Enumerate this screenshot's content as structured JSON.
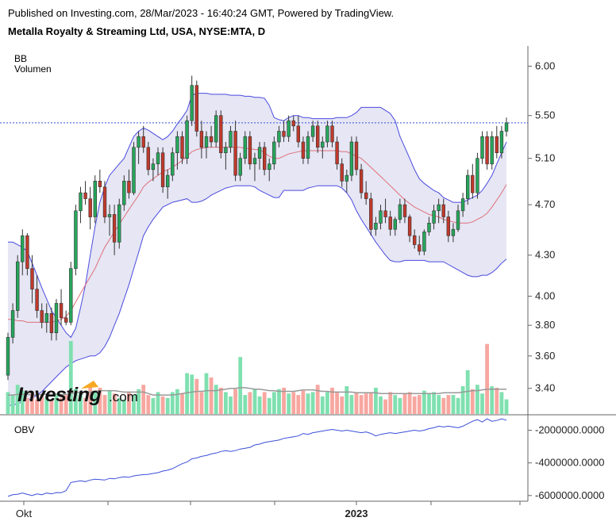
{
  "header": {
    "publisher": "Published on Investing.com, 28/Mar/2023 - 16:40:24 GMT, Powered by TradingView.",
    "symbol": "Metalla Royalty & Streaming Ltd, USA, NYSE:MTA, D"
  },
  "logo": {
    "text": "Investing",
    "suffix": ".com"
  },
  "colors": {
    "up": "#26a65b",
    "down": "#c0392b",
    "vol_up": "#7fe0b0",
    "vol_down": "#f7a7a0",
    "bb_band": "#4a4ae0",
    "bb_fill": "#e6e6f4",
    "bb_mid": "#e0707a",
    "obv": "#3b4fd8",
    "price_line": "#3b4fd8",
    "vol_ma": "#999999"
  },
  "chart_data": [
    {
      "type": "candlestick",
      "title": "Metalla Royalty & Streaming Ltd, USA, NYSE:MTA, D",
      "legend": [
        "BB",
        "Volumen"
      ],
      "y_ticks": [
        "6.00",
        "5.50",
        "5.10",
        "4.70",
        "4.30",
        "4.00",
        "3.80",
        "3.60",
        "3.40"
      ],
      "ylim": [
        3.25,
        6.2
      ],
      "y_scale": "log",
      "current_price": 5.43,
      "x_labels": [
        "Okt",
        "",
        "",
        "",
        "2023",
        "",
        "",
        ""
      ],
      "candles": [
        [
          3.48,
          3.75,
          3.45,
          3.72
        ],
        [
          3.72,
          3.95,
          3.68,
          3.9
        ],
        [
          3.9,
          4.3,
          3.85,
          4.25
        ],
        [
          4.25,
          4.5,
          4.15,
          4.45
        ],
        [
          4.45,
          4.47,
          4.15,
          4.2
        ],
        [
          4.2,
          4.3,
          3.95,
          4.05
        ],
        [
          4.05,
          4.15,
          3.85,
          3.9
        ],
        [
          3.9,
          3.95,
          3.78,
          3.82
        ],
        [
          3.82,
          3.95,
          3.75,
          3.88
        ],
        [
          3.88,
          3.92,
          3.7,
          3.75
        ],
        [
          3.75,
          3.98,
          3.7,
          3.95
        ],
        [
          3.95,
          4.05,
          3.8,
          3.85
        ],
        [
          3.85,
          3.9,
          3.8,
          3.82
        ],
        [
          3.82,
          4.25,
          3.8,
          4.2
        ],
        [
          4.2,
          4.7,
          4.15,
          4.65
        ],
        [
          4.65,
          4.85,
          4.55,
          4.8
        ],
        [
          4.8,
          4.9,
          4.7,
          4.75
        ],
        [
          4.75,
          4.85,
          4.5,
          4.6
        ],
        [
          4.6,
          4.95,
          4.55,
          4.9
        ],
        [
          4.9,
          5.0,
          4.8,
          4.85
        ],
        [
          4.85,
          4.9,
          4.55,
          4.6
        ],
        [
          4.6,
          4.7,
          4.45,
          4.62
        ],
        [
          4.62,
          4.7,
          4.3,
          4.4
        ],
        [
          4.4,
          4.75,
          4.35,
          4.7
        ],
        [
          4.7,
          4.95,
          4.65,
          4.9
        ],
        [
          4.9,
          5.0,
          4.75,
          4.8
        ],
        [
          4.8,
          5.25,
          4.78,
          5.2
        ],
        [
          5.2,
          5.35,
          5.05,
          5.3
        ],
        [
          5.3,
          5.4,
          5.15,
          5.2
        ],
        [
          5.2,
          5.25,
          4.95,
          5.0
        ],
        [
          5.0,
          5.1,
          4.9,
          5.05
        ],
        [
          5.05,
          5.2,
          4.95,
          5.15
        ],
        [
          5.15,
          5.2,
          4.8,
          4.85
        ],
        [
          4.85,
          5.0,
          4.75,
          4.95
        ],
        [
          4.95,
          5.2,
          4.9,
          5.15
        ],
        [
          5.15,
          5.35,
          5.0,
          5.3
        ],
        [
          5.3,
          5.35,
          5.05,
          5.1
        ],
        [
          5.1,
          5.5,
          5.05,
          5.45
        ],
        [
          5.45,
          5.9,
          5.4,
          5.8
        ],
        [
          5.8,
          5.85,
          5.3,
          5.35
        ],
        [
          5.35,
          5.45,
          5.1,
          5.2
        ],
        [
          5.2,
          5.35,
          5.1,
          5.3
        ],
        [
          5.3,
          5.4,
          5.2,
          5.25
        ],
        [
          5.25,
          5.55,
          5.2,
          5.5
        ],
        [
          5.5,
          5.55,
          5.1,
          5.15
        ],
        [
          5.15,
          5.25,
          5.0,
          5.2
        ],
        [
          5.2,
          5.4,
          5.15,
          5.35
        ],
        [
          5.35,
          5.45,
          4.9,
          4.95
        ],
        [
          4.95,
          5.15,
          4.9,
          5.1
        ],
        [
          5.1,
          5.35,
          5.05,
          5.3
        ],
        [
          5.3,
          5.35,
          5.0,
          5.05
        ],
        [
          5.05,
          5.15,
          4.9,
          5.1
        ],
        [
          5.1,
          5.25,
          5.0,
          5.2
        ],
        [
          5.2,
          5.25,
          4.95,
          5.0
        ],
        [
          5.0,
          5.1,
          4.9,
          5.05
        ],
        [
          5.05,
          5.3,
          5.0,
          5.25
        ],
        [
          5.25,
          5.4,
          5.2,
          5.35
        ],
        [
          5.35,
          5.45,
          5.25,
          5.3
        ],
        [
          5.3,
          5.5,
          5.25,
          5.45
        ],
        [
          5.45,
          5.5,
          5.35,
          5.4
        ],
        [
          5.4,
          5.5,
          5.2,
          5.25
        ],
        [
          5.25,
          5.3,
          5.05,
          5.1
        ],
        [
          5.1,
          5.35,
          5.05,
          5.3
        ],
        [
          5.3,
          5.45,
          5.25,
          5.4
        ],
        [
          5.4,
          5.45,
          5.15,
          5.2
        ],
        [
          5.2,
          5.3,
          5.1,
          5.25
        ],
        [
          5.25,
          5.45,
          5.2,
          5.4
        ],
        [
          5.4,
          5.45,
          5.2,
          5.25
        ],
        [
          5.25,
          5.3,
          5.0,
          5.05
        ],
        [
          5.05,
          5.1,
          4.85,
          4.9
        ],
        [
          4.9,
          5.0,
          4.8,
          4.95
        ],
        [
          4.95,
          5.3,
          4.9,
          5.25
        ],
        [
          5.25,
          5.3,
          4.95,
          5.0
        ],
        [
          5.0,
          5.05,
          4.75,
          4.8
        ],
        [
          4.8,
          4.9,
          4.7,
          4.75
        ],
        [
          4.75,
          4.8,
          4.45,
          4.5
        ],
        [
          4.5,
          4.6,
          4.45,
          4.55
        ],
        [
          4.55,
          4.7,
          4.5,
          4.65
        ],
        [
          4.65,
          4.75,
          4.55,
          4.6
        ],
        [
          4.6,
          4.65,
          4.45,
          4.5
        ],
        [
          4.5,
          4.6,
          4.45,
          4.58
        ],
        [
          4.58,
          4.75,
          4.55,
          4.7
        ],
        [
          4.7,
          4.75,
          4.55,
          4.6
        ],
        [
          4.6,
          4.62,
          4.4,
          4.45
        ],
        [
          4.45,
          4.5,
          4.35,
          4.38
        ],
        [
          4.38,
          4.45,
          4.3,
          4.33
        ],
        [
          4.33,
          4.5,
          4.3,
          4.48
        ],
        [
          4.48,
          4.6,
          4.45,
          4.55
        ],
        [
          4.55,
          4.7,
          4.5,
          4.65
        ],
        [
          4.65,
          4.75,
          4.55,
          4.7
        ],
        [
          4.7,
          4.75,
          4.55,
          4.6
        ],
        [
          4.6,
          4.65,
          4.4,
          4.45
        ],
        [
          4.45,
          4.55,
          4.4,
          4.5
        ],
        [
          4.5,
          4.7,
          4.48,
          4.65
        ],
        [
          4.65,
          4.8,
          4.6,
          4.75
        ],
        [
          4.75,
          5.0,
          4.7,
          4.95
        ],
        [
          4.95,
          5.05,
          4.75,
          4.8
        ],
        [
          4.8,
          5.15,
          4.75,
          5.1
        ],
        [
          5.1,
          5.35,
          5.05,
          5.3
        ],
        [
          5.3,
          5.35,
          5.0,
          5.05
        ],
        [
          5.05,
          5.35,
          5.0,
          5.3
        ],
        [
          5.3,
          5.4,
          5.1,
          5.15
        ],
        [
          5.15,
          5.4,
          5.1,
          5.35
        ],
        [
          5.35,
          5.48,
          5.3,
          5.43
        ]
      ],
      "bb_upper": [
        4.4,
        4.4,
        4.38,
        4.36,
        4.33,
        4.24,
        4.15,
        4.06,
        3.98,
        3.9,
        3.85,
        3.8,
        3.75,
        3.72,
        3.78,
        3.92,
        4.08,
        4.3,
        4.52,
        4.72,
        4.85,
        4.95,
        5.0,
        5.05,
        5.1,
        5.2,
        5.3,
        5.35,
        5.38,
        5.36,
        5.33,
        5.3,
        5.27,
        5.3,
        5.35,
        5.42,
        5.48,
        5.55,
        5.7,
        5.72,
        5.72,
        5.72,
        5.71,
        5.71,
        5.71,
        5.71,
        5.7,
        5.7,
        5.7,
        5.69,
        5.69,
        5.68,
        5.68,
        5.67,
        5.6,
        5.48,
        5.46,
        5.45,
        5.48,
        5.5,
        5.5,
        5.48,
        5.48,
        5.47,
        5.47,
        5.47,
        5.47,
        5.47,
        5.48,
        5.48,
        5.48,
        5.5,
        5.53,
        5.58,
        5.58,
        5.58,
        5.58,
        5.58,
        5.55,
        5.52,
        5.45,
        5.3,
        5.2,
        5.1,
        5.0,
        4.92,
        4.88,
        4.85,
        4.82,
        4.8,
        4.76,
        4.74,
        4.72,
        4.72,
        4.72,
        4.74,
        4.76,
        4.78,
        4.82,
        4.88,
        4.95,
        5.05,
        5.15,
        5.25
      ],
      "bb_middle": [
        3.84,
        3.84,
        3.83,
        3.83,
        3.82,
        3.82,
        3.82,
        3.82,
        3.82,
        3.82,
        3.83,
        3.84,
        3.86,
        3.9,
        3.96,
        4.02,
        4.08,
        4.14,
        4.2,
        4.28,
        4.36,
        4.42,
        4.48,
        4.54,
        4.6,
        4.66,
        4.72,
        4.78,
        4.85,
        4.89,
        4.92,
        4.95,
        4.98,
        5.0,
        5.02,
        5.05,
        5.08,
        5.12,
        5.16,
        5.18,
        5.19,
        5.2,
        5.2,
        5.2,
        5.2,
        5.2,
        5.2,
        5.2,
        5.2,
        5.19,
        5.19,
        5.18,
        5.18,
        5.15,
        5.12,
        5.1,
        5.1,
        5.12,
        5.14,
        5.15,
        5.16,
        5.17,
        5.17,
        5.17,
        5.17,
        5.17,
        5.17,
        5.17,
        5.17,
        5.16,
        5.16,
        5.14,
        5.12,
        5.1,
        5.06,
        5.02,
        4.98,
        4.94,
        4.9,
        4.86,
        4.82,
        4.78,
        4.74,
        4.71,
        4.68,
        4.66,
        4.64,
        4.62,
        4.61,
        4.6,
        4.58,
        4.57,
        4.56,
        4.55,
        4.55,
        4.55,
        4.56,
        4.58,
        4.6,
        4.63,
        4.68,
        4.74,
        4.8,
        4.87
      ],
      "bb_lower": [
        3.3,
        3.3,
        3.31,
        3.32,
        3.33,
        3.34,
        3.36,
        3.38,
        3.41,
        3.44,
        3.47,
        3.5,
        3.53,
        3.55,
        3.57,
        3.58,
        3.59,
        3.6,
        3.6,
        3.62,
        3.66,
        3.72,
        3.8,
        3.88,
        3.98,
        4.08,
        4.2,
        4.32,
        4.45,
        4.52,
        4.58,
        4.63,
        4.68,
        4.7,
        4.72,
        4.73,
        4.74,
        4.75,
        4.72,
        4.72,
        4.73,
        4.75,
        4.78,
        4.8,
        4.82,
        4.84,
        4.85,
        4.86,
        4.86,
        4.86,
        4.86,
        4.85,
        4.82,
        4.8,
        4.78,
        4.76,
        4.76,
        4.82,
        4.82,
        4.82,
        4.82,
        4.82,
        4.84,
        4.85,
        4.86,
        4.86,
        4.86,
        4.86,
        4.86,
        4.84,
        4.8,
        4.74,
        4.65,
        4.58,
        4.52,
        4.46,
        4.4,
        4.35,
        4.3,
        4.26,
        4.25,
        4.25,
        4.26,
        4.26,
        4.26,
        4.26,
        4.26,
        4.25,
        4.25,
        4.25,
        4.25,
        4.23,
        4.21,
        4.19,
        4.17,
        4.15,
        4.14,
        4.14,
        4.15,
        4.15,
        4.17,
        4.2,
        4.24,
        4.27
      ],
      "volume": [
        0.3,
        0.26,
        0.4,
        0.32,
        0.22,
        0.3,
        0.2,
        0.26,
        0.24,
        0.2,
        0.28,
        0.22,
        0.26,
        1.0,
        0.34,
        0.3,
        0.22,
        0.4,
        0.3,
        0.36,
        0.26,
        0.32,
        0.28,
        0.22,
        0.2,
        0.3,
        0.26,
        0.34,
        0.4,
        0.26,
        0.22,
        0.3,
        0.24,
        0.22,
        0.3,
        0.34,
        0.28,
        0.56,
        0.54,
        0.48,
        0.3,
        0.56,
        0.5,
        0.4,
        0.36,
        0.3,
        0.24,
        0.34,
        0.78,
        0.26,
        0.3,
        0.34,
        0.24,
        0.3,
        0.22,
        0.3,
        0.34,
        0.36,
        0.28,
        0.3,
        0.26,
        0.32,
        0.28,
        0.3,
        0.4,
        0.24,
        0.3,
        0.36,
        0.3,
        0.24,
        0.38,
        0.26,
        0.3,
        0.26,
        0.28,
        0.3,
        0.36,
        0.24,
        0.2,
        0.3,
        0.26,
        0.22,
        0.28,
        0.3,
        0.24,
        0.26,
        0.32,
        0.28,
        0.3,
        0.26,
        0.22,
        0.26,
        0.26,
        0.22,
        0.38,
        0.6,
        0.34,
        0.4,
        0.28,
        0.96,
        0.38,
        0.36,
        0.3,
        0.2
      ],
      "volume_ma": [
        0.26,
        0.26,
        0.27,
        0.27,
        0.27,
        0.26,
        0.26,
        0.27,
        0.27,
        0.27,
        0.27,
        0.27,
        0.27,
        0.28,
        0.29,
        0.3,
        0.3,
        0.3,
        0.31,
        0.32,
        0.32,
        0.32,
        0.32,
        0.31,
        0.3,
        0.3,
        0.3,
        0.3,
        0.3,
        0.28,
        0.26,
        0.26,
        0.26,
        0.26,
        0.26,
        0.27,
        0.28,
        0.29,
        0.3,
        0.31,
        0.31,
        0.32,
        0.32,
        0.32,
        0.33,
        0.34,
        0.35,
        0.35,
        0.36,
        0.36,
        0.35,
        0.34,
        0.34,
        0.33,
        0.32,
        0.32,
        0.31,
        0.31,
        0.31,
        0.31,
        0.32,
        0.33,
        0.33,
        0.33,
        0.32,
        0.31,
        0.31,
        0.3,
        0.3,
        0.3,
        0.3,
        0.3,
        0.29,
        0.29,
        0.29,
        0.29,
        0.29,
        0.28,
        0.28,
        0.28,
        0.28,
        0.28,
        0.28,
        0.28,
        0.28,
        0.28,
        0.28,
        0.28,
        0.28,
        0.28,
        0.29,
        0.29,
        0.29,
        0.29,
        0.3,
        0.31,
        0.32,
        0.32,
        0.33,
        0.34,
        0.34,
        0.34,
        0.34,
        0.34
      ]
    },
    {
      "type": "line",
      "title": "OBV",
      "y_ticks": [
        "-2000000.0000",
        "-4000000.0000",
        "-6000000.0000"
      ],
      "ylim": [
        -6300000,
        -1100000
      ],
      "values": [
        -6050000,
        -5950000,
        -5920000,
        -5850000,
        -5930000,
        -6000000,
        -5900000,
        -5950000,
        -5850000,
        -5900000,
        -5820000,
        -5830000,
        -5700000,
        -5200000,
        -5150000,
        -5100000,
        -5150000,
        -5050000,
        -5000000,
        -5020000,
        -5050000,
        -4950000,
        -4980000,
        -4900000,
        -4850000,
        -4880000,
        -4800000,
        -4750000,
        -4720000,
        -4700000,
        -4650000,
        -4600000,
        -4500000,
        -4450000,
        -4350000,
        -4200000,
        -4050000,
        -3950000,
        -3750000,
        -3700000,
        -3600000,
        -3550000,
        -3450000,
        -3400000,
        -3300000,
        -3250000,
        -3300000,
        -3250000,
        -3150000,
        -3100000,
        -3050000,
        -2900000,
        -2850000,
        -2750000,
        -2700000,
        -2650000,
        -2600000,
        -2500000,
        -2450000,
        -2400000,
        -2350000,
        -2200000,
        -2250000,
        -2150000,
        -2100000,
        -2050000,
        -2000000,
        -1950000,
        -2000000,
        -2050000,
        -2000000,
        -2050000,
        -2100000,
        -2150000,
        -2100000,
        -2200000,
        -2350000,
        -2250000,
        -2200000,
        -2150000,
        -2200000,
        -2150000,
        -2100000,
        -2050000,
        -2000000,
        -2050000,
        -2000000,
        -1900000,
        -1850000,
        -1750000,
        -1800000,
        -1750000,
        -1800000,
        -1850000,
        -1750000,
        -1600000,
        -1450000,
        -1350000,
        -1500000,
        -1300000,
        -1450000,
        -1400000,
        -1300000,
        -1380000
      ]
    }
  ]
}
